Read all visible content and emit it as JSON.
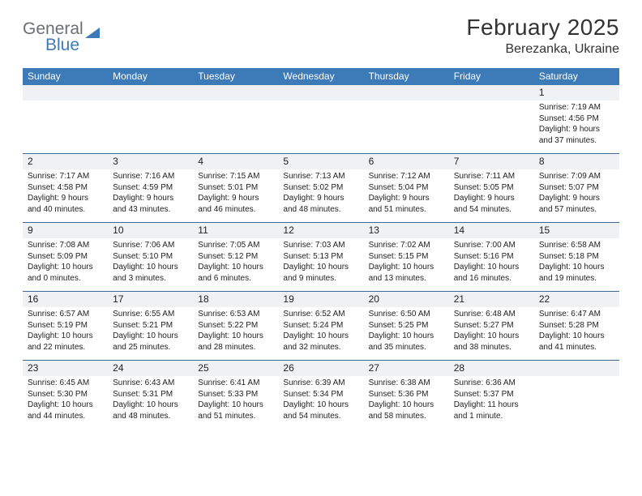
{
  "logo": {
    "general": "General",
    "blue": "Blue"
  },
  "title": {
    "month": "February 2025",
    "location": "Berezanka, Ukraine"
  },
  "colors": {
    "header_bg": "#3d7ab8",
    "shade_bg": "#f0f1f2",
    "rule": "#3d6a92",
    "text": "#222222",
    "logo_gray": "#6b6f72",
    "logo_blue": "#3d7ab8"
  },
  "dayNames": [
    "Sunday",
    "Monday",
    "Tuesday",
    "Wednesday",
    "Thursday",
    "Friday",
    "Saturday"
  ],
  "weeks": [
    [
      {
        "blank": true
      },
      {
        "blank": true
      },
      {
        "blank": true
      },
      {
        "blank": true
      },
      {
        "blank": true
      },
      {
        "blank": true
      },
      {
        "n": "1",
        "sr": "Sunrise: 7:19 AM",
        "ss": "Sunset: 4:56 PM",
        "d1": "Daylight: 9 hours",
        "d2": "and 37 minutes."
      }
    ],
    [
      {
        "n": "2",
        "sr": "Sunrise: 7:17 AM",
        "ss": "Sunset: 4:58 PM",
        "d1": "Daylight: 9 hours",
        "d2": "and 40 minutes."
      },
      {
        "n": "3",
        "sr": "Sunrise: 7:16 AM",
        "ss": "Sunset: 4:59 PM",
        "d1": "Daylight: 9 hours",
        "d2": "and 43 minutes."
      },
      {
        "n": "4",
        "sr": "Sunrise: 7:15 AM",
        "ss": "Sunset: 5:01 PM",
        "d1": "Daylight: 9 hours",
        "d2": "and 46 minutes."
      },
      {
        "n": "5",
        "sr": "Sunrise: 7:13 AM",
        "ss": "Sunset: 5:02 PM",
        "d1": "Daylight: 9 hours",
        "d2": "and 48 minutes."
      },
      {
        "n": "6",
        "sr": "Sunrise: 7:12 AM",
        "ss": "Sunset: 5:04 PM",
        "d1": "Daylight: 9 hours",
        "d2": "and 51 minutes."
      },
      {
        "n": "7",
        "sr": "Sunrise: 7:11 AM",
        "ss": "Sunset: 5:05 PM",
        "d1": "Daylight: 9 hours",
        "d2": "and 54 minutes."
      },
      {
        "n": "8",
        "sr": "Sunrise: 7:09 AM",
        "ss": "Sunset: 5:07 PM",
        "d1": "Daylight: 9 hours",
        "d2": "and 57 minutes."
      }
    ],
    [
      {
        "n": "9",
        "sr": "Sunrise: 7:08 AM",
        "ss": "Sunset: 5:09 PM",
        "d1": "Daylight: 10 hours",
        "d2": "and 0 minutes."
      },
      {
        "n": "10",
        "sr": "Sunrise: 7:06 AM",
        "ss": "Sunset: 5:10 PM",
        "d1": "Daylight: 10 hours",
        "d2": "and 3 minutes."
      },
      {
        "n": "11",
        "sr": "Sunrise: 7:05 AM",
        "ss": "Sunset: 5:12 PM",
        "d1": "Daylight: 10 hours",
        "d2": "and 6 minutes."
      },
      {
        "n": "12",
        "sr": "Sunrise: 7:03 AM",
        "ss": "Sunset: 5:13 PM",
        "d1": "Daylight: 10 hours",
        "d2": "and 9 minutes."
      },
      {
        "n": "13",
        "sr": "Sunrise: 7:02 AM",
        "ss": "Sunset: 5:15 PM",
        "d1": "Daylight: 10 hours",
        "d2": "and 13 minutes."
      },
      {
        "n": "14",
        "sr": "Sunrise: 7:00 AM",
        "ss": "Sunset: 5:16 PM",
        "d1": "Daylight: 10 hours",
        "d2": "and 16 minutes."
      },
      {
        "n": "15",
        "sr": "Sunrise: 6:58 AM",
        "ss": "Sunset: 5:18 PM",
        "d1": "Daylight: 10 hours",
        "d2": "and 19 minutes."
      }
    ],
    [
      {
        "n": "16",
        "sr": "Sunrise: 6:57 AM",
        "ss": "Sunset: 5:19 PM",
        "d1": "Daylight: 10 hours",
        "d2": "and 22 minutes."
      },
      {
        "n": "17",
        "sr": "Sunrise: 6:55 AM",
        "ss": "Sunset: 5:21 PM",
        "d1": "Daylight: 10 hours",
        "d2": "and 25 minutes."
      },
      {
        "n": "18",
        "sr": "Sunrise: 6:53 AM",
        "ss": "Sunset: 5:22 PM",
        "d1": "Daylight: 10 hours",
        "d2": "and 28 minutes."
      },
      {
        "n": "19",
        "sr": "Sunrise: 6:52 AM",
        "ss": "Sunset: 5:24 PM",
        "d1": "Daylight: 10 hours",
        "d2": "and 32 minutes."
      },
      {
        "n": "20",
        "sr": "Sunrise: 6:50 AM",
        "ss": "Sunset: 5:25 PM",
        "d1": "Daylight: 10 hours",
        "d2": "and 35 minutes."
      },
      {
        "n": "21",
        "sr": "Sunrise: 6:48 AM",
        "ss": "Sunset: 5:27 PM",
        "d1": "Daylight: 10 hours",
        "d2": "and 38 minutes."
      },
      {
        "n": "22",
        "sr": "Sunrise: 6:47 AM",
        "ss": "Sunset: 5:28 PM",
        "d1": "Daylight: 10 hours",
        "d2": "and 41 minutes."
      }
    ],
    [
      {
        "n": "23",
        "sr": "Sunrise: 6:45 AM",
        "ss": "Sunset: 5:30 PM",
        "d1": "Daylight: 10 hours",
        "d2": "and 44 minutes."
      },
      {
        "n": "24",
        "sr": "Sunrise: 6:43 AM",
        "ss": "Sunset: 5:31 PM",
        "d1": "Daylight: 10 hours",
        "d2": "and 48 minutes."
      },
      {
        "n": "25",
        "sr": "Sunrise: 6:41 AM",
        "ss": "Sunset: 5:33 PM",
        "d1": "Daylight: 10 hours",
        "d2": "and 51 minutes."
      },
      {
        "n": "26",
        "sr": "Sunrise: 6:39 AM",
        "ss": "Sunset: 5:34 PM",
        "d1": "Daylight: 10 hours",
        "d2": "and 54 minutes."
      },
      {
        "n": "27",
        "sr": "Sunrise: 6:38 AM",
        "ss": "Sunset: 5:36 PM",
        "d1": "Daylight: 10 hours",
        "d2": "and 58 minutes."
      },
      {
        "n": "28",
        "sr": "Sunrise: 6:36 AM",
        "ss": "Sunset: 5:37 PM",
        "d1": "Daylight: 11 hours",
        "d2": "and 1 minute."
      },
      {
        "blank": true
      }
    ]
  ]
}
